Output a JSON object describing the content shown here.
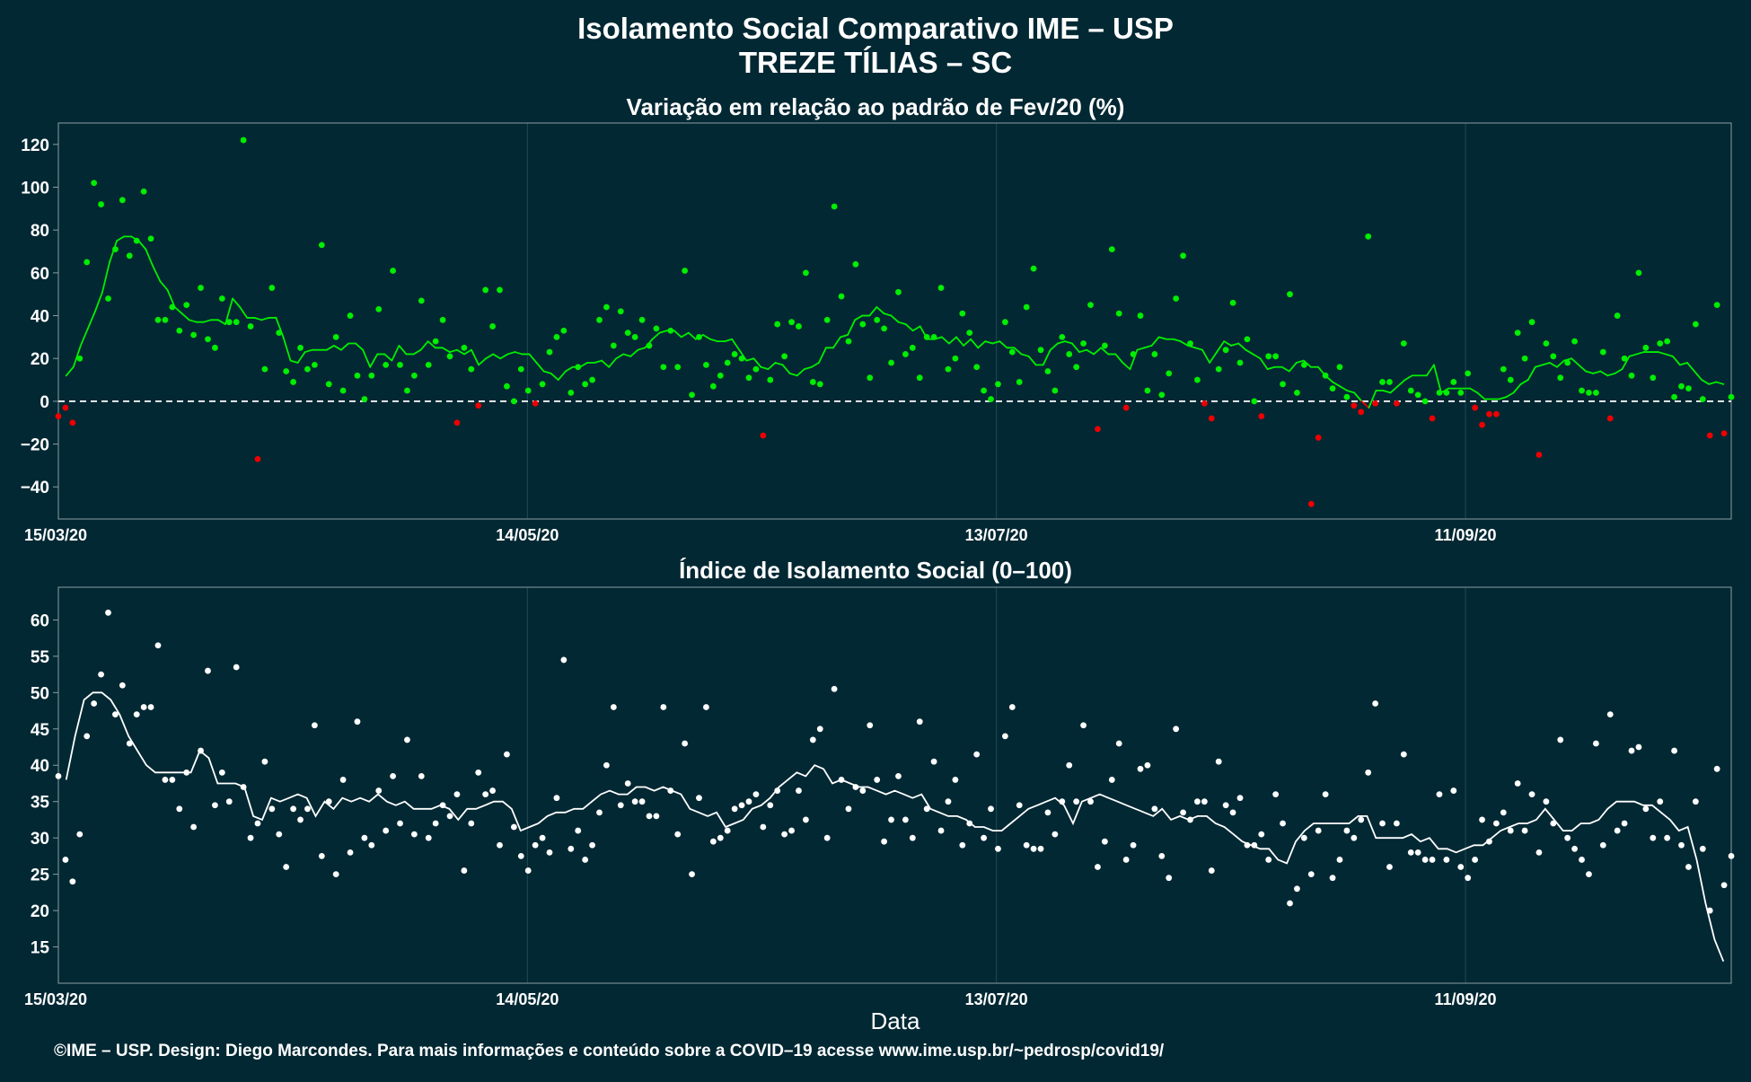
{
  "title_line1": "Isolamento Social Comparativo IME – USP",
  "title_line2": "TREZE TÍLIAS – SC",
  "xlabel": "Data",
  "footer": "©IME – USP. Design: Diego Marcondes. Para mais informações e conteúdo sobre a COVID–19 acesse www.ime.usp.br/~pedrosp/covid19/",
  "colors": {
    "background": "#022833",
    "positive": "#00ee00",
    "negative": "#ee0000",
    "index": "#ffffff",
    "grid": "#1f4a54",
    "frame": "#8a9ea3"
  },
  "chart_data": [
    {
      "type": "scatter",
      "title": "Variação em relação ao padrão de Fev/20 (%)",
      "xlabel": "",
      "ylabel": "",
      "x_start": "15/03/20",
      "x_end": "15/10/20",
      "xlim": [
        "15/03/20",
        "15/10/20"
      ],
      "ylim": [
        -55,
        130
      ],
      "yticks": [
        "120",
        "100",
        "80",
        "60",
        "40",
        "20",
        "0",
        "−20",
        "−40"
      ],
      "ytick_values": [
        120,
        100,
        80,
        60,
        40,
        20,
        0,
        -20,
        -40
      ],
      "xticks": [
        {
          "date": "15/03/20",
          "label": "15/03/20"
        },
        {
          "date": "14/05/20",
          "label": "14/05/20"
        },
        {
          "date": "13/07/20",
          "label": "13/07/20"
        },
        {
          "date": "11/09/20",
          "label": "11/09/20"
        }
      ],
      "reference_line": 0,
      "grid": true,
      "colors": "green where value ≥ 0, red where value < 0",
      "values": [
        -7,
        -3,
        -10,
        20,
        65,
        102,
        92,
        48,
        71,
        94,
        68,
        75,
        98,
        76,
        38,
        38,
        44,
        33,
        45,
        31,
        53,
        29,
        25,
        48,
        37,
        37,
        122,
        35,
        -27,
        15,
        53,
        32,
        14,
        9,
        25,
        15,
        17,
        73,
        8,
        30,
        5,
        40,
        12,
        1,
        12,
        43,
        17,
        61,
        17,
        5,
        12,
        47,
        17,
        28,
        38,
        21,
        -10,
        25,
        15,
        -2,
        52,
        35,
        52,
        7,
        0,
        15,
        5,
        -1,
        8,
        23,
        30,
        33,
        4,
        16,
        8,
        10,
        38,
        44,
        26,
        42,
        32,
        30,
        38,
        26,
        34,
        16,
        33,
        16,
        61,
        3,
        30,
        17,
        7,
        12,
        18,
        22,
        20,
        11,
        15,
        -16,
        10,
        36,
        21,
        37,
        35,
        60,
        9,
        8,
        38,
        91,
        49,
        28,
        64,
        36,
        11,
        38,
        34,
        18,
        51,
        22,
        25,
        11,
        30,
        30,
        53,
        15,
        20,
        41,
        32,
        16,
        5,
        1,
        8,
        37,
        23,
        9,
        44,
        62,
        24,
        14,
        5,
        30,
        22,
        16,
        27,
        45,
        -13,
        26,
        71,
        41,
        -3,
        22,
        40,
        5,
        22,
        3,
        13,
        48,
        68,
        27,
        10,
        -1,
        -8,
        15,
        24,
        46,
        18,
        29,
        0,
        -7,
        21,
        21,
        8,
        50,
        4,
        17,
        -48,
        -17,
        12,
        6,
        16,
        2,
        -2,
        -5,
        77,
        -1,
        9,
        9,
        -1,
        27,
        5,
        3,
        0,
        -8,
        4,
        4,
        9,
        4,
        13,
        -3,
        -11,
        -6,
        -6,
        15,
        10,
        32,
        20,
        37,
        -25,
        27,
        21,
        11,
        18,
        28,
        5,
        4,
        4,
        23,
        -8,
        40,
        20,
        12,
        60,
        25,
        11,
        27,
        28,
        2,
        7,
        6,
        36,
        1,
        -16,
        45,
        -15,
        2
      ],
      "moving_average": [
        12,
        16,
        26,
        34,
        42,
        51,
        65,
        75,
        77,
        77,
        75,
        71,
        63,
        56,
        52,
        44,
        41,
        38,
        37,
        37,
        38,
        38,
        36,
        48,
        44,
        39,
        39,
        38,
        39,
        39,
        30,
        19,
        18,
        23,
        24,
        24,
        24,
        26,
        24,
        27,
        27,
        24,
        16,
        22,
        22,
        19,
        26,
        22,
        22,
        24,
        28,
        25,
        25,
        23,
        24,
        22,
        24,
        17,
        20,
        22,
        20,
        22,
        23,
        22,
        22,
        18,
        14,
        13,
        10,
        14,
        16,
        16,
        18,
        18,
        19,
        16,
        20,
        22,
        21,
        24,
        25,
        29,
        32,
        33,
        33,
        30,
        32,
        29,
        31,
        29,
        28,
        28,
        29,
        24,
        19,
        20,
        16,
        15,
        18,
        17,
        13,
        12,
        15,
        16,
        18,
        25,
        25,
        30,
        31,
        38,
        40,
        40,
        44,
        41,
        40,
        37,
        36,
        33,
        35,
        29,
        29,
        30,
        27,
        30,
        26,
        29,
        25,
        28,
        27,
        28,
        25,
        25,
        22,
        21,
        17,
        17,
        24,
        27,
        28,
        27,
        23,
        24,
        22,
        25,
        22,
        22,
        18,
        15,
        24,
        25,
        26,
        30,
        29,
        29,
        28,
        26,
        25,
        24,
        18,
        23,
        28,
        26,
        27,
        24,
        22,
        20,
        15,
        16,
        16,
        14,
        18,
        19,
        16,
        16,
        12,
        9,
        7,
        5,
        4,
        0,
        -3,
        5,
        5,
        4,
        7,
        10,
        12,
        12,
        12,
        17,
        4,
        6,
        6,
        6,
        6,
        4,
        1,
        1,
        1,
        2,
        4,
        8,
        10,
        16,
        17,
        18,
        16,
        19,
        20,
        17,
        14,
        13,
        14,
        12,
        13,
        15,
        21,
        22,
        23,
        23,
        23,
        22,
        21,
        17,
        18,
        14,
        10,
        8,
        9,
        8
      ],
      "ma_color_rule": "green where value ≥ 0, red where value < 0"
    },
    {
      "type": "scatter",
      "title": "Índice de Isolamento Social (0–100)",
      "xlabel": "Data",
      "ylabel": "",
      "x_start": "15/03/20",
      "x_end": "15/10/20",
      "xlim": [
        "15/03/20",
        "15/10/20"
      ],
      "ylim": [
        10,
        64.5
      ],
      "yticks": [
        "60",
        "55",
        "50",
        "45",
        "40",
        "35",
        "30",
        "25",
        "20",
        "15"
      ],
      "ytick_values": [
        60,
        55,
        50,
        45,
        40,
        35,
        30,
        25,
        20,
        15
      ],
      "xticks": [
        {
          "date": "15/03/20",
          "label": "15/03/20"
        },
        {
          "date": "14/05/20",
          "label": "14/05/20"
        },
        {
          "date": "13/07/20",
          "label": "13/07/20"
        },
        {
          "date": "11/09/20",
          "label": "11/09/20"
        }
      ],
      "grid": true,
      "values": [
        38.5,
        27,
        24,
        30.5,
        44,
        48.5,
        52.5,
        61,
        47,
        51,
        43,
        47,
        48,
        48,
        56.5,
        38,
        38,
        34,
        39,
        31.5,
        42,
        53,
        34.5,
        39,
        35,
        53.5,
        37,
        30,
        32,
        40.5,
        34,
        30.5,
        26,
        34,
        32.5,
        34,
        45.5,
        27.5,
        35,
        25,
        38,
        28,
        46,
        30,
        29,
        36.5,
        31,
        38.5,
        32,
        43.5,
        30.5,
        38.5,
        30,
        32,
        34.5,
        33,
        36,
        25.5,
        32,
        39,
        36,
        36.5,
        29,
        41.5,
        31.5,
        27.5,
        25.5,
        29,
        30,
        28,
        35.5,
        54.5,
        28.5,
        31,
        27,
        29,
        33.5,
        40,
        48,
        34.5,
        37.5,
        35,
        35,
        33,
        33,
        48,
        36.5,
        30.5,
        43,
        25,
        35.5,
        48,
        29.5,
        30,
        31,
        34,
        34.5,
        35,
        36,
        31.5,
        34.5,
        36.5,
        30.5,
        31,
        36.5,
        32.5,
        43.5,
        45,
        30,
        50.5,
        38,
        34,
        37,
        36.5,
        45.5,
        38,
        29.5,
        32.5,
        38.5,
        32.5,
        30,
        46,
        34,
        40.5,
        31,
        35,
        38,
        29,
        32,
        41.5,
        30,
        34,
        28.5,
        44,
        48,
        34.5,
        29,
        28.5,
        28.5,
        33.5,
        30.5,
        35,
        40,
        35,
        45.5,
        35,
        26,
        29.5,
        38,
        43,
        27,
        29,
        39.5,
        40,
        34,
        27.5,
        24.5,
        45,
        33.5,
        32.5,
        35,
        35,
        25.5,
        40.5,
        34.5,
        33.5,
        35.5,
        29,
        29,
        30.5,
        27,
        36,
        32,
        21,
        23,
        30,
        25,
        31,
        36,
        24.5,
        27,
        31,
        30,
        32.5,
        39,
        48.5,
        32,
        26,
        32,
        41.5,
        28,
        28,
        27,
        27,
        36,
        27,
        36.5,
        26,
        24.5,
        27,
        32.5,
        29.5,
        32,
        33.5,
        31,
        37.5,
        31,
        36,
        28,
        35,
        32,
        43.5,
        30,
        28.5,
        27,
        25,
        43,
        29,
        47,
        31,
        32,
        42,
        42.5,
        34,
        30,
        35,
        30,
        42,
        29,
        26,
        35,
        28.5,
        20,
        39.5,
        23.5,
        27.5
      ],
      "moving_average": [
        38,
        44,
        49,
        50,
        50,
        49,
        47,
        44,
        42,
        40,
        39,
        39,
        39,
        39,
        39,
        42,
        41,
        37.5,
        37.5,
        37.5,
        37,
        33,
        32.5,
        35.5,
        35,
        35.5,
        36,
        35.5,
        33,
        35,
        34,
        35.5,
        35,
        35.5,
        35,
        36,
        35,
        34.5,
        35,
        34,
        34,
        34,
        34.5,
        34,
        32.5,
        34,
        34,
        34.5,
        35,
        35,
        34,
        31,
        31.5,
        32,
        33,
        33.5,
        33.5,
        34,
        34,
        35,
        36,
        36.5,
        36,
        36,
        37,
        37,
        36.5,
        37,
        36.5,
        36,
        34,
        33.5,
        33,
        33.5,
        31.5,
        32,
        32.5,
        34,
        34.5,
        35.5,
        37,
        38,
        39,
        38.5,
        40,
        39.5,
        37.5,
        38,
        37.5,
        37,
        37,
        36.5,
        36,
        36.5,
        36,
        35.5,
        36,
        34,
        33.5,
        33,
        33,
        32.5,
        31.5,
        31.5,
        31,
        31,
        32,
        33,
        34,
        34.5,
        35,
        35.5,
        34.5,
        32,
        35,
        35.5,
        36,
        35.5,
        35,
        34.5,
        34,
        33.5,
        33,
        34,
        32.5,
        33,
        32.5,
        33,
        33,
        32,
        31.5,
        30.5,
        29.5,
        29,
        28.5,
        28.5,
        27,
        26.5,
        29.5,
        31,
        32,
        32,
        32,
        32,
        32,
        33,
        33,
        30,
        30,
        30,
        30,
        30.5,
        29.5,
        30,
        28.5,
        28.5,
        28,
        28.5,
        29,
        29,
        30,
        31,
        31.5,
        32,
        32,
        32.5,
        34,
        32.5,
        31,
        31,
        32,
        32,
        32.5,
        34,
        35,
        35,
        35,
        34.5,
        34.5,
        33.5,
        32.5,
        31,
        31.5,
        27,
        21,
        16,
        13
      ]
    }
  ]
}
